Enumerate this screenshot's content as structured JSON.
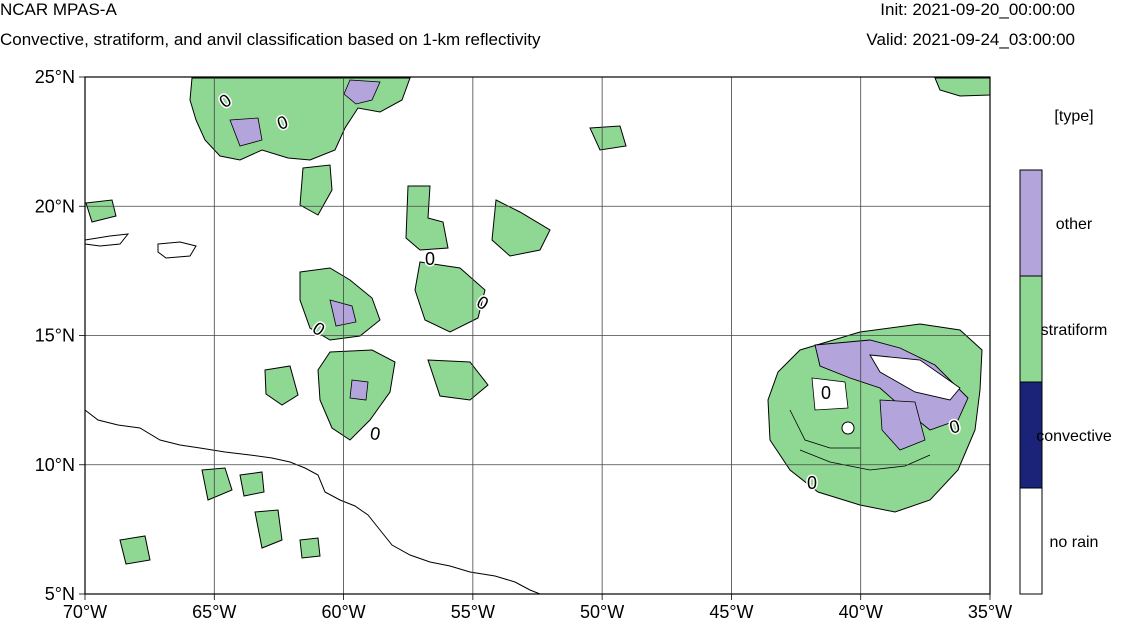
{
  "header": {
    "title": "NCAR MPAS-A",
    "subtitle": "Convective, stratiform, and anvil classification based on 1-km reflectivity",
    "init": "Init: 2021-09-20_00:00:00",
    "valid": "Valid: 2021-09-24_03:00:00"
  },
  "map": {
    "lon_range": [
      -70,
      -35
    ],
    "lat_range": [
      5,
      25
    ],
    "lat_labels": [
      "25°N",
      "20°N",
      "15°N",
      "10°N",
      "5°N"
    ],
    "lon_labels": [
      "70°W",
      "65°W",
      "60°W",
      "55°W",
      "50°W",
      "45°W",
      "40°W",
      "35°W"
    ],
    "contour_label": "0"
  },
  "legend": {
    "title": "[type]",
    "items": [
      {
        "label": "other",
        "color": "#b3a4dc"
      },
      {
        "label": "stratiform",
        "color": "#8fd893"
      },
      {
        "label": "convective",
        "color": "#1a2377"
      },
      {
        "label": "no rain",
        "color": "#ffffff"
      }
    ]
  },
  "colors": {
    "other": "#b3a4dc",
    "stratiform": "#8fd893",
    "convective": "#1a2377",
    "grid": "#444444"
  }
}
